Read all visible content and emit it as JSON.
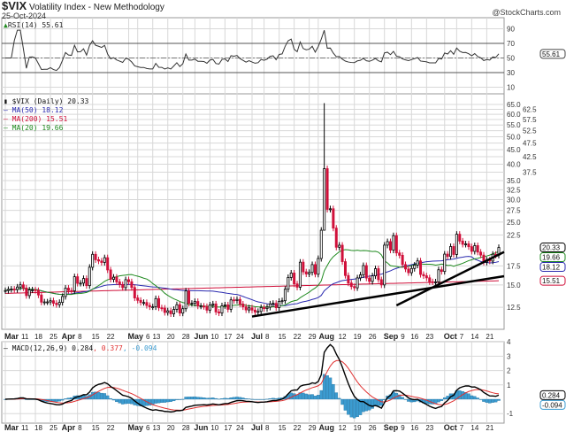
{
  "header": {
    "symbol": "$VIX",
    "name": "Volatility Index - New Methodology",
    "date": "25-Oct-2024",
    "brand": "@StockCharts.com"
  },
  "rsi_legend": "RSI(14) 55.61",
  "price_legend": "$VIX (Daily) 20.33",
  "ma_legends": [
    {
      "label": "MA(50) 18.12",
      "color": "#2b2bb0"
    },
    {
      "label": "MA(200) 15.51",
      "color": "#d0103a"
    },
    {
      "label": "MA(20) 19.66",
      "color": "#1f8a1f"
    }
  ],
  "macd_legend": {
    "label": "MACD(12,26,9) 0.284",
    "signal": ", 0.377",
    "hist": ", -0.094"
  },
  "colors": {
    "up": "#000000",
    "down": "#d0103a",
    "ma50": "#2b2bb0",
    "ma200": "#d0103a",
    "ma20": "#1f8a1f",
    "macd": "#000000",
    "signal": "#e03030",
    "hist": "#3b9bd0",
    "grid": "#d8d8d8"
  },
  "chart_data": {
    "type": "candlestick",
    "title": "$VIX Volatility Index - New Methodology (Daily)",
    "y_scale": "log",
    "ylim": [
      10.5,
      66
    ],
    "y_ticks": [
      "65.0",
      "62.5",
      "60.0",
      "57.5",
      "55.0",
      "52.5",
      "50.0",
      "47.5",
      "45.0",
      "42.5",
      "40.0",
      "37.5",
      "35.0",
      "32.5",
      "30.0",
      "27.5",
      "25.0",
      "22.5",
      "17.5",
      "15.0",
      "12.5"
    ],
    "months": [
      {
        "label": "Mar",
        "days": [
          4,
          5,
          6,
          7,
          8,
          11,
          12,
          13,
          14,
          15,
          18,
          19,
          20,
          21,
          22,
          25,
          26,
          27,
          28
        ],
        "close": [
          14.33,
          14.46,
          14.5,
          14.44,
          14.74,
          15.01,
          14.63,
          13.75,
          14.4,
          14.41,
          14.33,
          13.82,
          13.04,
          13.06,
          13.06,
          13.19,
          12.92,
          12.78,
          13.01
        ]
      },
      {
        "label": "Apr",
        "days": [
          1,
          2,
          3,
          4,
          5,
          8,
          9,
          10,
          11,
          12,
          15,
          16,
          17,
          18,
          19,
          22,
          23,
          24,
          25,
          26,
          29,
          30
        ],
        "close": [
          13.65,
          14.61,
          14.33,
          14.29,
          16.03,
          15.19,
          15.22,
          15.8,
          14.91,
          17.31,
          19.23,
          18.4,
          18.21,
          18.0,
          18.71,
          16.94,
          15.69,
          15.97,
          15.37,
          15.03,
          14.67,
          15.65
        ]
      },
      {
        "label": "May",
        "days": [
          1,
          2,
          3,
          6,
          7,
          8,
          9,
          10,
          13,
          14,
          15,
          16,
          17,
          20,
          21,
          22,
          23,
          24,
          28,
          29,
          30,
          31
        ],
        "close": [
          15.39,
          14.68,
          13.49,
          13.23,
          13.0,
          13.0,
          12.69,
          12.55,
          12.55,
          13.42,
          12.45,
          12.42,
          11.99,
          12.15,
          11.86,
          12.29,
          12.77,
          11.93,
          12.36,
          14.28,
          12.91,
          12.92
        ]
      },
      {
        "label": "Jun",
        "days": [
          3,
          4,
          5,
          6,
          7,
          10,
          11,
          12,
          13,
          14,
          17,
          18,
          20,
          21,
          24,
          25,
          26,
          27,
          28
        ],
        "close": [
          13.11,
          12.63,
          12.63,
          12.58,
          12.22,
          12.74,
          12.85,
          12.04,
          11.94,
          12.66,
          12.75,
          12.3,
          13.28,
          13.2,
          13.33,
          12.84,
          12.55,
          12.24,
          12.44
        ]
      },
      {
        "label": "Jul",
        "days": [
          1,
          2,
          3,
          5,
          8,
          9,
          10,
          11,
          12,
          15,
          16,
          17,
          18,
          19,
          22,
          23,
          24,
          25,
          26,
          29,
          30,
          31
        ],
        "close": [
          12.22,
          12.03,
          12.09,
          12.48,
          12.37,
          12.51,
          12.85,
          12.91,
          12.46,
          13.12,
          13.19,
          14.48,
          15.93,
          16.52,
          15.12,
          14.72,
          18.04,
          16.68,
          16.39,
          16.6,
          17.69,
          16.36
        ]
      },
      {
        "label": "Aug",
        "days": [
          1,
          2,
          5,
          6,
          7,
          8,
          9,
          12,
          13,
          14,
          15,
          16,
          19,
          20,
          21,
          22,
          23,
          26,
          27,
          28,
          29,
          30
        ],
        "close": [
          18.59,
          23.39,
          38.57,
          27.71,
          27.85,
          23.79,
          20.37,
          20.71,
          18.12,
          16.19,
          15.23,
          14.8,
          14.65,
          15.88,
          16.27,
          17.55,
          15.86,
          15.43,
          16.15,
          17.11,
          15.65,
          15.0
        ]
      },
      {
        "label": "Sep",
        "days": [
          3,
          4,
          5,
          6,
          9,
          10,
          11,
          12,
          13,
          16,
          17,
          18,
          19,
          20,
          23,
          24,
          25,
          26,
          27,
          30
        ],
        "close": [
          20.72,
          21.32,
          19.9,
          22.38,
          19.45,
          19.08,
          17.69,
          17.07,
          16.56,
          17.14,
          17.61,
          18.23,
          16.33,
          16.15,
          15.89,
          15.39,
          15.37,
          15.37,
          16.96,
          16.73
        ]
      },
      {
        "label": "Oct",
        "days": [
          1,
          2,
          3,
          4,
          7,
          8,
          9,
          10,
          11,
          14,
          15,
          16,
          17,
          18,
          21,
          22,
          23,
          24,
          25
        ],
        "close": [
          19.26,
          18.9,
          20.49,
          19.21,
          22.64,
          21.42,
          20.86,
          20.93,
          20.46,
          19.7,
          20.64,
          19.58,
          19.11,
          18.03,
          18.37,
          18.2,
          19.24,
          19.08,
          20.33
        ]
      }
    ],
    "intraday_extremes": [
      {
        "month": "Aug",
        "day": 5,
        "high": 65.73,
        "low": 23.39
      }
    ],
    "ma200_range": [
      14.0,
      15.51
    ],
    "last": {
      "close": "20.33",
      "ma20": "19.66",
      "ma50": "18.12",
      "ma200": "15.51"
    },
    "trendlines": [
      {
        "from": {
          "month": "Jul",
          "day": 1,
          "value": 11.6
        },
        "to": {
          "month": "Oct",
          "day": 25,
          "value": 16.1
        }
      },
      {
        "from": {
          "month": "Sep",
          "day": 9,
          "value": 12.7
        },
        "to": {
          "month": "Oct",
          "day": 25,
          "value": 19.6
        }
      }
    ],
    "x_ticks": [
      {
        "label": "Mar",
        "month": "Mar",
        "day": 4,
        "bold": true
      },
      {
        "label": "11",
        "month": "Mar",
        "day": 11
      },
      {
        "label": "18",
        "month": "Mar",
        "day": 18
      },
      {
        "label": "25",
        "month": "Mar",
        "day": 25
      },
      {
        "label": "Apr",
        "month": "Apr",
        "day": 1,
        "bold": true
      },
      {
        "label": "8",
        "month": "Apr",
        "day": 8
      },
      {
        "label": "15",
        "month": "Apr",
        "day": 15
      },
      {
        "label": "22",
        "month": "Apr",
        "day": 22
      },
      {
        "label": "May",
        "month": "May",
        "day": 1,
        "bold": true
      },
      {
        "label": "6",
        "month": "May",
        "day": 6
      },
      {
        "label": "13",
        "month": "May",
        "day": 13
      },
      {
        "label": "20",
        "month": "May",
        "day": 20
      },
      {
        "label": "28",
        "month": "May",
        "day": 28
      },
      {
        "label": "Jun",
        "month": "Jun",
        "day": 3,
        "bold": true
      },
      {
        "label": "10",
        "month": "Jun",
        "day": 10
      },
      {
        "label": "17",
        "month": "Jun",
        "day": 17
      },
      {
        "label": "24",
        "month": "Jun",
        "day": 24
      },
      {
        "label": "Jul",
        "month": "Jul",
        "day": 1,
        "bold": true
      },
      {
        "label": "8",
        "month": "Jul",
        "day": 8
      },
      {
        "label": "15",
        "month": "Jul",
        "day": 15
      },
      {
        "label": "22",
        "month": "Jul",
        "day": 22
      },
      {
        "label": "29",
        "month": "Jul",
        "day": 29
      },
      {
        "label": "Aug",
        "month": "Aug",
        "day": 1,
        "bold": true
      },
      {
        "label": "12",
        "month": "Aug",
        "day": 12
      },
      {
        "label": "19",
        "month": "Aug",
        "day": 19
      },
      {
        "label": "26",
        "month": "Aug",
        "day": 26
      },
      {
        "label": "Sep",
        "month": "Sep",
        "day": 3,
        "bold": true
      },
      {
        "label": "9",
        "month": "Sep",
        "day": 9
      },
      {
        "label": "16",
        "month": "Sep",
        "day": 16
      },
      {
        "label": "23",
        "month": "Sep",
        "day": 23
      },
      {
        "label": "Oct",
        "month": "Oct",
        "day": 1,
        "bold": true
      },
      {
        "label": "7",
        "month": "Oct",
        "day": 7
      },
      {
        "label": "14",
        "month": "Oct",
        "day": 14
      },
      {
        "label": "21",
        "month": "Oct",
        "day": 21
      }
    ],
    "rsi": {
      "period": 14,
      "last": "55.61",
      "y_ticks": [
        "90",
        "70",
        "50",
        "30",
        "10"
      ],
      "levels": [
        70,
        30
      ]
    },
    "macd": {
      "params": [
        12,
        26,
        9
      ],
      "last": {
        "macd": "0.284",
        "signal": "0.377",
        "hist": "-0.094"
      },
      "y_ticks": [
        "4",
        "3",
        "2",
        "1",
        "-1"
      ]
    }
  }
}
